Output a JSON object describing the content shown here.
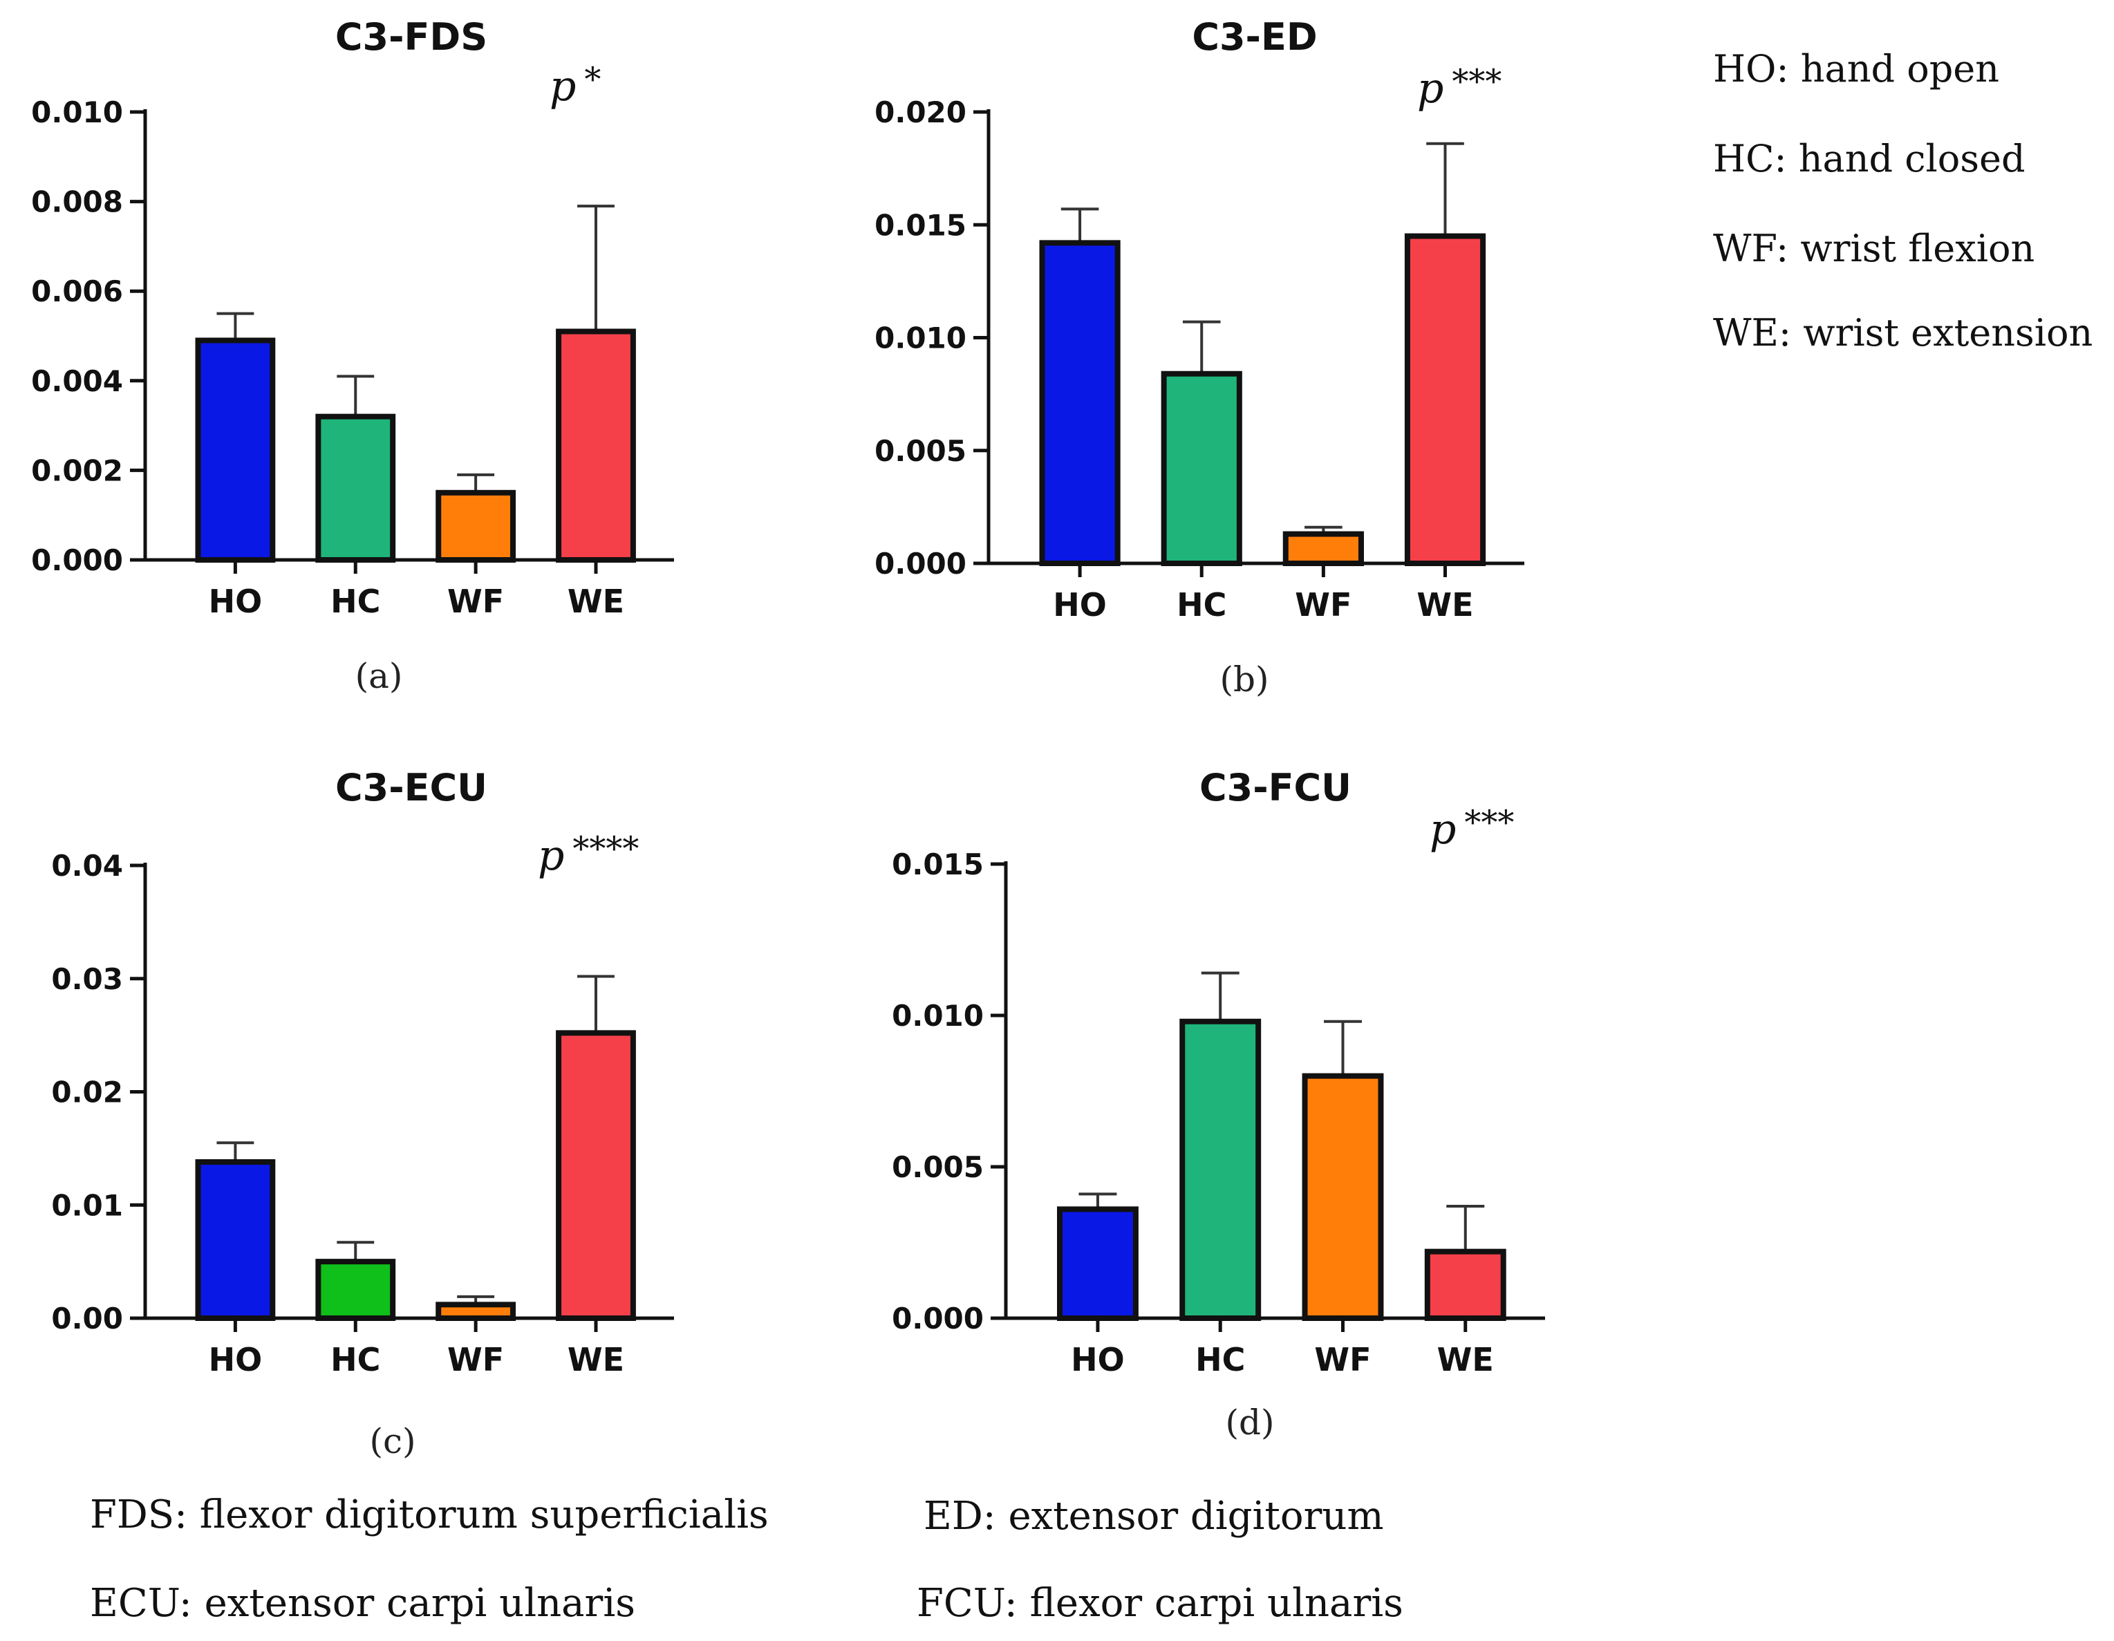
{
  "chart_data": [
    {
      "type": "bar",
      "title": "C3-FDS",
      "significance": "*",
      "panel_label": "(a)",
      "categories": [
        "HO",
        "HC",
        "WF",
        "WE"
      ],
      "values": [
        0.0049,
        0.0032,
        0.0015,
        0.0051
      ],
      "errors": [
        0.0006,
        0.0009,
        0.0004,
        0.0028
      ],
      "colors": [
        "#0a18e6",
        "#1fb57a",
        "#ff7e0a",
        "#f5404a"
      ],
      "ylim": [
        0,
        0.01
      ],
      "yticks": [
        "0.000",
        "0.002",
        "0.004",
        "0.006",
        "0.008",
        "0.010"
      ],
      "xlabel": "",
      "ylabel": ""
    },
    {
      "type": "bar",
      "title": "C3-ED",
      "significance": "***",
      "panel_label": "(b)",
      "categories": [
        "HO",
        "HC",
        "WF",
        "WE"
      ],
      "values": [
        0.0142,
        0.0084,
        0.0013,
        0.0145
      ],
      "errors": [
        0.0015,
        0.0023,
        0.0003,
        0.0041
      ],
      "colors": [
        "#0a18e6",
        "#1fb57a",
        "#ff7e0a",
        "#f5404a"
      ],
      "ylim": [
        0,
        0.02
      ],
      "yticks": [
        "0.000",
        "0.005",
        "0.010",
        "0.015",
        "0.020"
      ],
      "xlabel": "",
      "ylabel": ""
    },
    {
      "type": "bar",
      "title": "C3-ECU",
      "significance": "****",
      "panel_label": "(c)",
      "categories": [
        "HO",
        "HC",
        "WF",
        "WE"
      ],
      "values": [
        0.0138,
        0.005,
        0.0012,
        0.0252
      ],
      "errors": [
        0.0017,
        0.0017,
        0.0007,
        0.005
      ],
      "colors": [
        "#0a18e6",
        "#0fbf1a",
        "#ff7e0a",
        "#f5404a"
      ],
      "ylim": [
        0,
        0.04
      ],
      "yticks": [
        "0.00",
        "0.01",
        "0.02",
        "0.03",
        "0.04"
      ],
      "xlabel": "",
      "ylabel": ""
    },
    {
      "type": "bar",
      "title": "C3-FCU",
      "significance": "***",
      "panel_label": "(d)",
      "categories": [
        "HO",
        "HC",
        "WF",
        "WE"
      ],
      "values": [
        0.0036,
        0.0098,
        0.008,
        0.0022
      ],
      "errors": [
        0.0005,
        0.0016,
        0.0018,
        0.0015
      ],
      "colors": [
        "#0a18e6",
        "#1fb57a",
        "#ff7e0a",
        "#f5404a"
      ],
      "ylim": [
        0,
        0.015
      ],
      "yticks": [
        "0.000",
        "0.005",
        "0.010",
        "0.015"
      ],
      "xlabel": "",
      "ylabel": ""
    }
  ],
  "p_letter": "p",
  "legend": [
    "HO: hand open",
    "HC: hand closed",
    "WF: wrist flexion",
    "WE: wrist extension"
  ],
  "abbreviations": [
    "FDS:  flexor digitorum superficialis",
    "ED:  extensor digitorum",
    "ECU:  extensor carpi ulnaris",
    "FCU:  flexor carpi ulnaris"
  ]
}
